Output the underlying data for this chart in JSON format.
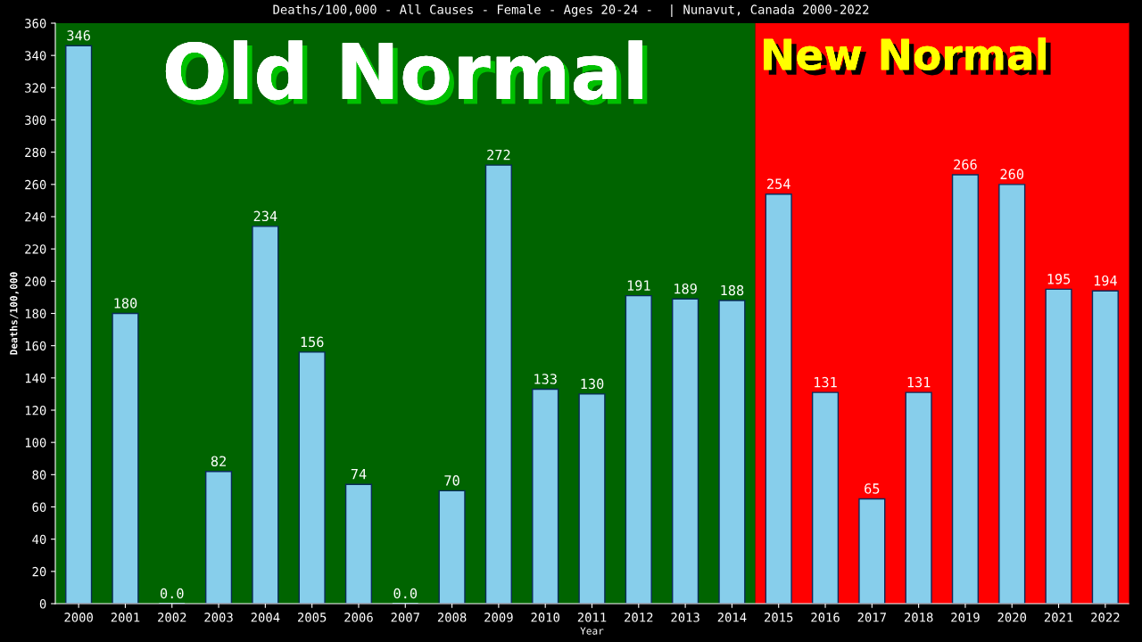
{
  "chart_data": {
    "type": "bar",
    "title": "Deaths/100,000 - All Causes - Female - Ages 20-24 -  | Nunavut, Canada 2000-2022",
    "xlabel": "Year",
    "ylabel": "Deaths/100,000",
    "categories": [
      "2000",
      "2001",
      "2002",
      "2003",
      "2004",
      "2005",
      "2006",
      "2007",
      "2008",
      "2009",
      "2010",
      "2011",
      "2012",
      "2013",
      "2014",
      "2015",
      "2016",
      "2017",
      "2018",
      "2019",
      "2020",
      "2021",
      "2022"
    ],
    "values": [
      346,
      180,
      0,
      82,
      234,
      156,
      74,
      0,
      70,
      272,
      133,
      130,
      191,
      189,
      188,
      254,
      131,
      65,
      131,
      266,
      260,
      195,
      194
    ],
    "value_labels": [
      "346",
      "180",
      "0.0",
      "82",
      "234",
      "156",
      "74",
      "0.0",
      "70",
      "272",
      "133",
      "130",
      "191",
      "189",
      "188",
      "254",
      "131",
      "65",
      "131",
      "266",
      "260",
      "195",
      "194"
    ],
    "color": "#87ceeb",
    "ylim": [
      0,
      360
    ],
    "yticks": [
      0,
      20,
      40,
      60,
      80,
      100,
      120,
      140,
      160,
      180,
      200,
      220,
      240,
      260,
      280,
      300,
      320,
      340,
      360
    ],
    "bands": [
      {
        "axis": "x",
        "from": "2000",
        "to": "2014",
        "label": "Old Normal",
        "color": "#006400"
      },
      {
        "axis": "x",
        "from": "2015",
        "to": "2022",
        "label": "New Normal",
        "color": "#ff0000"
      }
    ],
    "grid": false
  }
}
